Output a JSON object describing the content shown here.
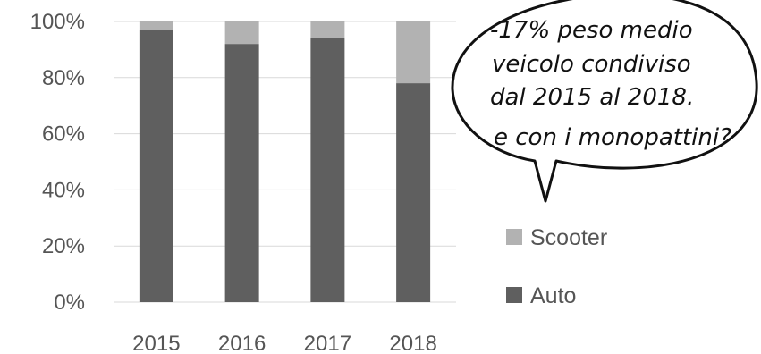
{
  "chart_data": {
    "type": "bar",
    "stacked": true,
    "normalized": true,
    "categories": [
      "2015",
      "2016",
      "2017",
      "2018"
    ],
    "series": [
      {
        "name": "Auto",
        "values": [
          97,
          92,
          94,
          78
        ]
      },
      {
        "name": "Scooter",
        "values": [
          3,
          8,
          6,
          22
        ]
      }
    ],
    "yticks": [
      "0%",
      "20%",
      "40%",
      "60%",
      "80%",
      "100%"
    ],
    "ylim": [
      0,
      100
    ],
    "grid": true,
    "legend_position": "right",
    "colors": {
      "Auto": "#5f5f5f",
      "Scooter": "#b2b2b2"
    }
  },
  "annotation": {
    "lines": [
      "-17% peso medio",
      "veicolo condiviso",
      "dal 2015 al 2018.",
      "e con i monopattini?"
    ]
  }
}
